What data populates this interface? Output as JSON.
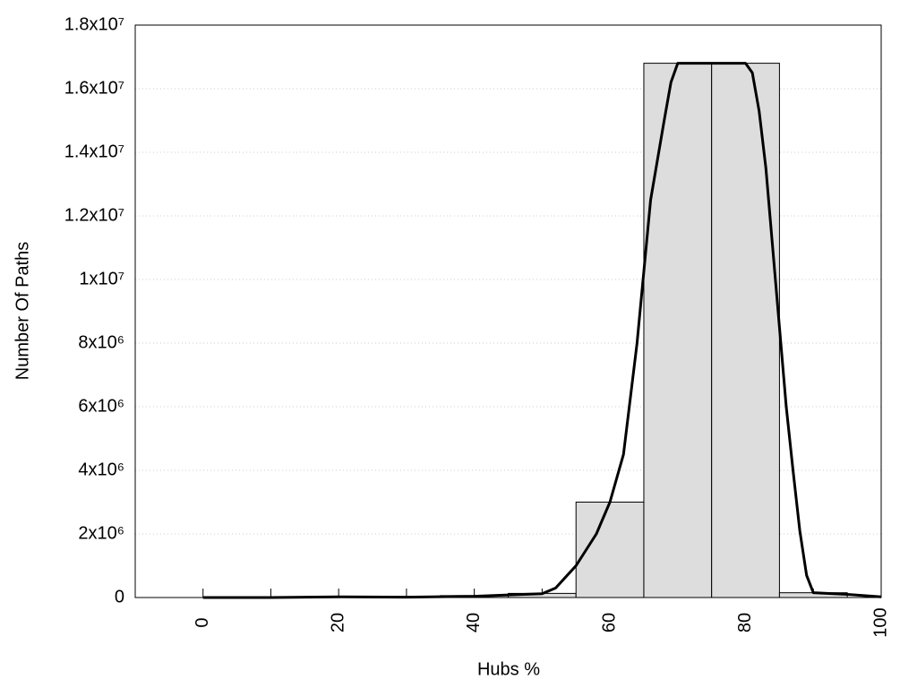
{
  "chart_data": {
    "type": "histogram",
    "x_label": "Hubs %",
    "y_label": "Number Of Paths",
    "bins": [
      -5,
      5,
      15,
      25,
      35,
      45,
      55,
      65,
      75,
      85,
      95
    ],
    "values": [
      0,
      0,
      30000,
      30000,
      60000,
      130000,
      3000000,
      16800000,
      16800000,
      150000
    ],
    "color": "#dddddd",
    "overlay": {
      "type": "line",
      "color": "#000000",
      "x": [
        0,
        10,
        20,
        30,
        40,
        45,
        50,
        52,
        55,
        58,
        60,
        62,
        64,
        66,
        68,
        69,
        70,
        75,
        80,
        81,
        82,
        83,
        84,
        85,
        86,
        87,
        88,
        89,
        90,
        95,
        100
      ],
      "values": [
        0,
        0,
        20000,
        10000,
        40000,
        80000,
        120000,
        300000,
        1000000,
        2000000,
        3000000,
        4500000,
        8000000,
        12500000,
        15000000,
        16200000,
        16800000,
        16800000,
        16800000,
        16500000,
        15300000,
        13500000,
        11000000,
        8500000,
        6000000,
        4000000,
        2100000,
        700000,
        150000,
        100000,
        20000
      ]
    },
    "xlim": [
      -10,
      100
    ],
    "xticks": [
      0,
      20,
      40,
      60,
      80,
      100
    ],
    "xminorticks": [
      10,
      30,
      50,
      70,
      90
    ],
    "ylim": [
      0,
      18000000
    ],
    "yticks": [
      0,
      {
        "value": 2000000,
        "label": "2x10⁶"
      },
      {
        "value": 4000000,
        "label": "4x10⁶"
      },
      {
        "value": 6000000,
        "label": "6x10⁶"
      },
      {
        "value": 8000000,
        "label": "8x10⁶"
      },
      {
        "value": 10000000,
        "label": "1x10⁷"
      },
      {
        "value": 12000000,
        "label": "1.2x10⁷"
      },
      {
        "value": 14000000,
        "label": "1.4x10⁷"
      },
      {
        "value": 16000000,
        "label": "1.6x10⁷"
      },
      {
        "value": 18000000,
        "label": "1.8x10⁷"
      }
    ],
    "grid": true
  }
}
